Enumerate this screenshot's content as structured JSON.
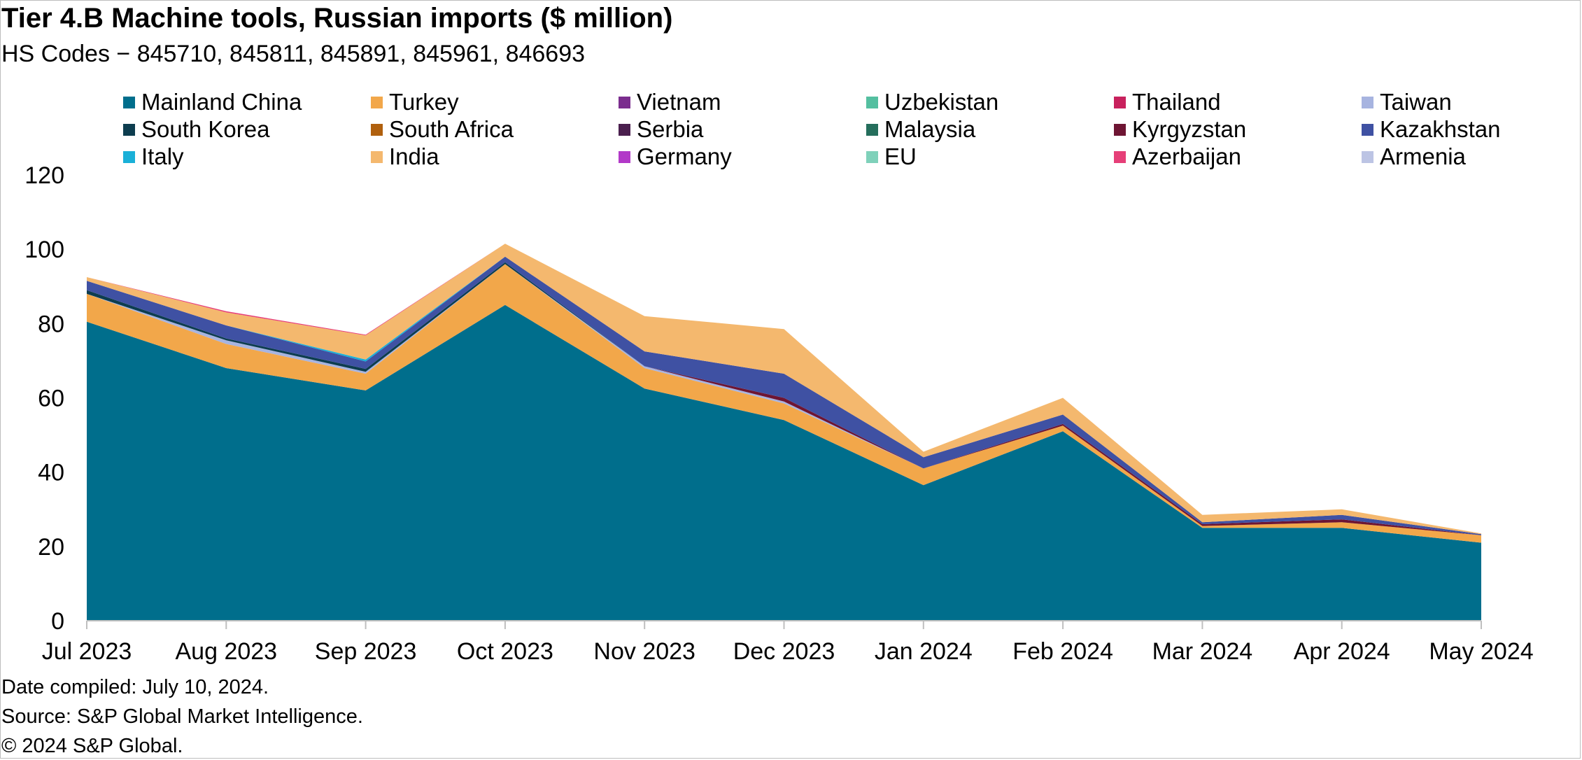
{
  "title": "Tier 4.B Machine tools, Russian imports ($ million)",
  "subtitle": "HS Codes − 845710, 845811, 845891, 845961, 846693",
  "footer": {
    "date_compiled": "Date compiled: July 10, 2024.",
    "source": "Source: S&P Global Market Intelligence.",
    "copyright": "© 2024 S&P Global."
  },
  "legend": [
    {
      "name": "Mainland China",
      "color": "#006E8C"
    },
    {
      "name": "Turkey",
      "color": "#F2A74A"
    },
    {
      "name": "Vietnam",
      "color": "#7B2D8E"
    },
    {
      "name": "Uzbekistan",
      "color": "#54BFA0"
    },
    {
      "name": "Thailand",
      "color": "#C8215D"
    },
    {
      "name": "Taiwan",
      "color": "#A7B4E0"
    },
    {
      "name": "South Korea",
      "color": "#0D3D4F"
    },
    {
      "name": "South Africa",
      "color": "#B0600E"
    },
    {
      "name": "Serbia",
      "color": "#4A1F4E"
    },
    {
      "name": "Malaysia",
      "color": "#256E5C"
    },
    {
      "name": "Kyrgyzstan",
      "color": "#6E1533"
    },
    {
      "name": "Kazakhstan",
      "color": "#3F51A3"
    },
    {
      "name": "Italy",
      "color": "#1AB0D8"
    },
    {
      "name": "India",
      "color": "#F4B86E"
    },
    {
      "name": "Germany",
      "color": "#B239C8"
    },
    {
      "name": "EU",
      "color": "#7FD1BA"
    },
    {
      "name": "Azerbaijan",
      "color": "#E63F78"
    },
    {
      "name": "Armenia",
      "color": "#BCC4E4"
    }
  ],
  "chart_data": {
    "type": "area",
    "stacked": true,
    "categories": [
      "Jul 2023",
      "Aug 2023",
      "Sep 2023",
      "Oct 2023",
      "Nov 2023",
      "Dec 2023",
      "Jan 2024",
      "Feb 2024",
      "Mar 2024",
      "Apr 2024",
      "May 2024"
    ],
    "y_ticks": [
      0,
      20,
      40,
      60,
      80,
      100,
      120
    ],
    "ylim": [
      0,
      120
    ],
    "series": [
      {
        "name": "Mainland China",
        "color": "#006E8C",
        "values": [
          80.5,
          68,
          62,
          85,
          62.5,
          54,
          36.5,
          51,
          25,
          25,
          21
        ]
      },
      {
        "name": "Turkey",
        "color": "#F2A74A",
        "values": [
          7.5,
          6.5,
          4.5,
          11,
          5.5,
          4.5,
          4.5,
          1.5,
          0.5,
          1.5,
          2
        ]
      },
      {
        "name": "Vietnam",
        "color": "#7B2D8E",
        "values": [
          0,
          0,
          0,
          0,
          0,
          0,
          0,
          0,
          0,
          0,
          0
        ]
      },
      {
        "name": "Uzbekistan",
        "color": "#54BFA0",
        "values": [
          0,
          0,
          0,
          0,
          0,
          0,
          0,
          0,
          0,
          0,
          0
        ]
      },
      {
        "name": "Thailand",
        "color": "#C8215D",
        "values": [
          0,
          0,
          0,
          0,
          0,
          0,
          0,
          0,
          0,
          0,
          0
        ]
      },
      {
        "name": "Taiwan",
        "color": "#A7B4E0",
        "values": [
          0,
          1,
          0.5,
          0,
          0.5,
          0.5,
          0,
          0,
          0,
          0,
          0
        ]
      },
      {
        "name": "South Korea",
        "color": "#0D3D4F",
        "values": [
          1,
          0.5,
          0.8,
          0.5,
          0,
          0,
          0,
          0,
          0,
          0,
          0
        ]
      },
      {
        "name": "South Africa",
        "color": "#B0600E",
        "values": [
          0,
          0,
          0,
          0,
          0,
          0,
          0,
          0,
          0,
          0,
          0
        ]
      },
      {
        "name": "Serbia",
        "color": "#4A1F4E",
        "values": [
          0,
          0,
          0,
          0,
          0,
          0,
          0,
          0,
          0,
          0,
          0
        ]
      },
      {
        "name": "Malaysia",
        "color": "#256E5C",
        "values": [
          0,
          0,
          0,
          0,
          0,
          0,
          0,
          0,
          0,
          0,
          0
        ]
      },
      {
        "name": "Kyrgyzstan",
        "color": "#6E1533",
        "values": [
          0,
          0,
          0,
          0,
          0,
          1,
          0,
          0.5,
          0.5,
          0.8,
          0
        ]
      },
      {
        "name": "Kazakhstan",
        "color": "#3F51A3",
        "values": [
          2.5,
          3.5,
          2,
          1.5,
          4,
          6.5,
          3,
          2.5,
          0.5,
          1.2,
          0.3
        ]
      },
      {
        "name": "Italy",
        "color": "#1AB0D8",
        "values": [
          0,
          0,
          0.5,
          0,
          0,
          0,
          0,
          0,
          0,
          0,
          0
        ]
      },
      {
        "name": "India",
        "color": "#F4B86E",
        "values": [
          1,
          3.5,
          6.5,
          3.5,
          9.5,
          12,
          1.5,
          4.5,
          2,
          1.5,
          0.2
        ]
      },
      {
        "name": "Germany",
        "color": "#B239C8",
        "values": [
          0,
          0,
          0,
          0,
          0,
          0,
          0,
          0,
          0,
          0,
          0
        ]
      },
      {
        "name": "EU",
        "color": "#7FD1BA",
        "values": [
          0,
          0,
          0,
          0,
          0,
          0,
          0,
          0,
          0,
          0,
          0
        ]
      },
      {
        "name": "Azerbaijan",
        "color": "#E63F78",
        "values": [
          0,
          0.3,
          0.2,
          0,
          0,
          0,
          0,
          0,
          0,
          0,
          0
        ]
      },
      {
        "name": "Armenia",
        "color": "#BCC4E4",
        "values": [
          0,
          0,
          0,
          0,
          0,
          0,
          0,
          0,
          0,
          0,
          0
        ]
      }
    ],
    "grid": false,
    "legend_position": "top"
  }
}
